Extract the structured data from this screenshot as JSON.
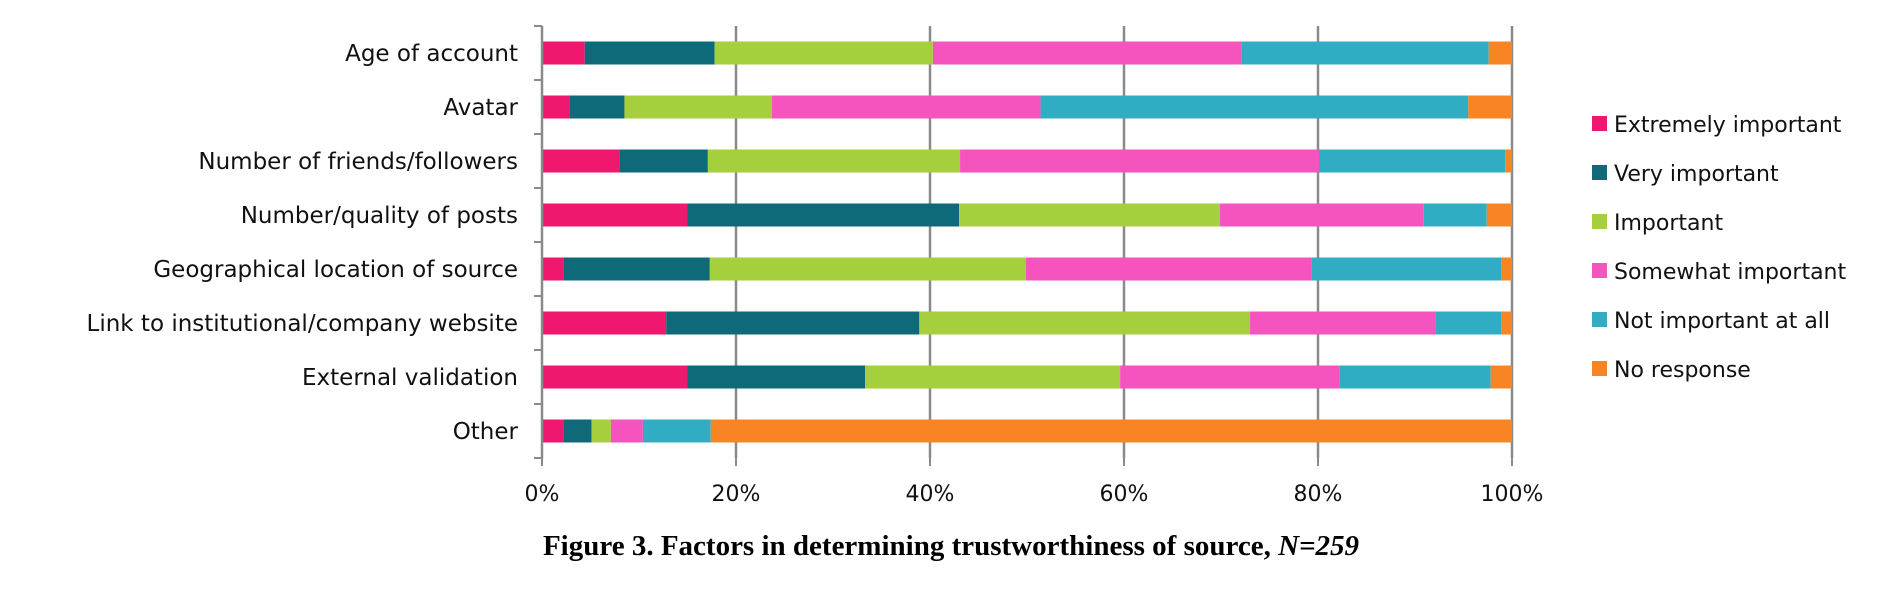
{
  "chart_data": {
    "type": "bar",
    "orientation": "horizontal",
    "stacked": "percent",
    "categories": [
      "Age of account",
      "Avatar",
      "Number of friends/followers",
      "Number/quality of posts",
      "Geographical location of source",
      "Link to institutional/company website",
      "External validation",
      "Other"
    ],
    "series": [
      {
        "name": "Extremely important",
        "color": "#f0186e",
        "values": [
          4.4,
          2.8,
          8.0,
          15.0,
          2.2,
          12.8,
          15.0,
          2.2
        ]
      },
      {
        "name": "Very important",
        "color": "#0e6a78",
        "values": [
          13.4,
          5.7,
          9.1,
          28.0,
          15.1,
          26.1,
          18.3,
          2.9
        ]
      },
      {
        "name": "Important",
        "color": "#a5cf3c",
        "values": [
          22.5,
          15.2,
          26.0,
          26.9,
          32.6,
          34.1,
          26.3,
          2.0
        ]
      },
      {
        "name": "Somewhat important",
        "color": "#f553bd",
        "values": [
          31.8,
          27.7,
          37.0,
          21.0,
          29.4,
          19.1,
          22.6,
          3.3
        ]
      },
      {
        "name": "Not important at all",
        "color": "#30adc2",
        "values": [
          25.5,
          44.1,
          19.2,
          6.5,
          19.6,
          6.8,
          15.6,
          7.0
        ]
      },
      {
        "name": "No response",
        "color": "#f88424",
        "values": [
          2.4,
          4.5,
          0.7,
          2.6,
          1.1,
          1.1,
          2.2,
          82.6
        ]
      }
    ],
    "xlim": [
      0,
      100
    ],
    "xticks": [
      "0%",
      "20%",
      "40%",
      "60%",
      "80%",
      "100%"
    ],
    "grid": "vertical",
    "legend": "right"
  },
  "caption": {
    "text": "Figure 3. Factors in determining trustworthiness of source, ",
    "n_text": "N=259"
  }
}
